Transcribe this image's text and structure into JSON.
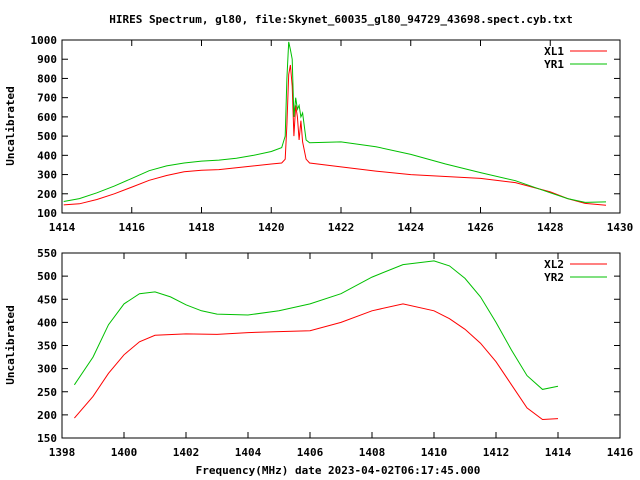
{
  "title": "HIRES Spectrum, gl80, file:Skynet_60035_gl80_94729_43698.spect.cyb.txt",
  "colors": {
    "red": "#ff0000",
    "green": "#00c000"
  },
  "chart_data": [
    {
      "type": "line",
      "ylabel": "Uncalibrated",
      "xlabel": "",
      "xlim": [
        1414,
        1430
      ],
      "ylim": [
        100,
        1000
      ],
      "xticks": [
        "1414",
        "1416",
        "1418",
        "1420",
        "1422",
        "1424",
        "1426",
        "1428",
        "1430"
      ],
      "yticks": [
        "100",
        "200",
        "300",
        "400",
        "500",
        "600",
        "700",
        "800",
        "900",
        "1000"
      ],
      "legend": "top-right",
      "series": [
        {
          "name": "XL1",
          "color": "#ff0000",
          "x": [
            1414.05,
            1414.5,
            1415,
            1415.5,
            1416,
            1416.5,
            1417,
            1417.5,
            1418,
            1418.5,
            1419,
            1419.5,
            1420,
            1420.3,
            1420.4,
            1420.45,
            1420.5,
            1420.55,
            1420.6,
            1420.65,
            1420.7,
            1420.75,
            1420.8,
            1420.85,
            1420.9,
            1421,
            1421.1,
            1422,
            1423,
            1424,
            1425,
            1426,
            1427,
            1428,
            1428.5,
            1429,
            1429.6
          ],
          "y": [
            142,
            148,
            170,
            200,
            235,
            270,
            295,
            315,
            322,
            326,
            335,
            345,
            355,
            360,
            380,
            560,
            820,
            870,
            760,
            500,
            660,
            600,
            480,
            580,
            470,
            380,
            360,
            340,
            318,
            300,
            290,
            280,
            258,
            210,
            175,
            150,
            140
          ]
        },
        {
          "name": "YR1",
          "color": "#00c000",
          "x": [
            1414.05,
            1414.5,
            1415,
            1415.5,
            1416,
            1416.5,
            1417,
            1417.5,
            1418,
            1418.5,
            1419,
            1419.5,
            1420,
            1420.3,
            1420.4,
            1420.45,
            1420.5,
            1420.55,
            1420.6,
            1420.65,
            1420.7,
            1420.75,
            1420.8,
            1420.85,
            1420.9,
            1421,
            1421.1,
            1422,
            1423,
            1424,
            1425,
            1426,
            1427,
            1428,
            1428.5,
            1429,
            1429.6
          ],
          "y": [
            160,
            175,
            205,
            240,
            280,
            320,
            345,
            360,
            370,
            375,
            385,
            400,
            420,
            440,
            500,
            800,
            990,
            950,
            900,
            600,
            700,
            640,
            660,
            600,
            620,
            480,
            465,
            470,
            445,
            405,
            355,
            310,
            268,
            205,
            175,
            155,
            158
          ]
        }
      ]
    },
    {
      "type": "line",
      "ylabel": "Uncalibrated",
      "xlabel": "Frequency(MHz) date 2023-04-02T06:17:45.000",
      "xlim": [
        1398,
        1416
      ],
      "ylim": [
        150,
        550
      ],
      "xticks": [
        "1398",
        "1400",
        "1402",
        "1404",
        "1406",
        "1408",
        "1410",
        "1412",
        "1414",
        "1416"
      ],
      "yticks": [
        "150",
        "200",
        "250",
        "300",
        "350",
        "400",
        "450",
        "500",
        "550"
      ],
      "legend": "top-right",
      "series": [
        {
          "name": "XL2",
          "color": "#ff0000",
          "x": [
            1398.4,
            1399,
            1399.5,
            1400,
            1400.5,
            1401,
            1402,
            1403,
            1404,
            1405,
            1406,
            1407,
            1408,
            1409,
            1410,
            1410.5,
            1411,
            1411.5,
            1412,
            1412.5,
            1413,
            1413.5,
            1414
          ],
          "y": [
            193,
            240,
            290,
            330,
            358,
            372,
            375,
            374,
            378,
            380,
            382,
            400,
            425,
            440,
            425,
            408,
            385,
            355,
            315,
            265,
            215,
            190,
            192
          ]
        },
        {
          "name": "YR2",
          "color": "#00c000",
          "x": [
            1398.4,
            1399,
            1399.5,
            1400,
            1400.5,
            1401,
            1401.5,
            1402,
            1402.5,
            1403,
            1404,
            1405,
            1406,
            1407,
            1408,
            1409,
            1410,
            1410.5,
            1411,
            1411.5,
            1412,
            1412.5,
            1413,
            1413.5,
            1414
          ],
          "y": [
            265,
            325,
            395,
            440,
            462,
            466,
            455,
            438,
            425,
            418,
            416,
            425,
            440,
            462,
            498,
            525,
            533,
            522,
            495,
            455,
            400,
            340,
            285,
            255,
            262
          ]
        }
      ]
    }
  ]
}
